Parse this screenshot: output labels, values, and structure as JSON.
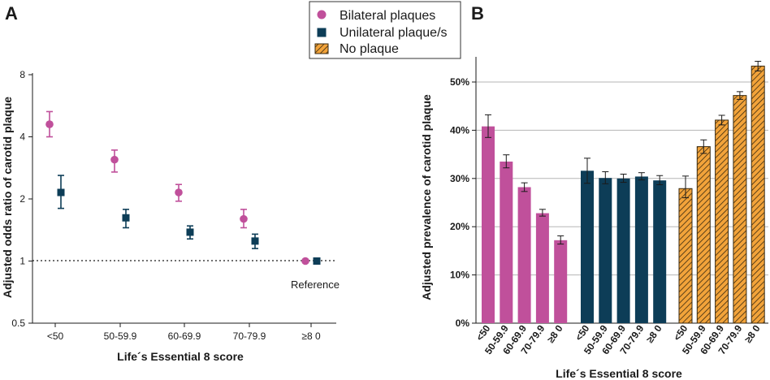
{
  "legend": {
    "items": [
      {
        "label": "Bilateral plaques",
        "color": "#c0509b",
        "marker": "circle"
      },
      {
        "label": "Unilateral plaque/s",
        "color": "#0d3d57",
        "marker": "square"
      },
      {
        "label": "No plaque",
        "color": "#f2a33a",
        "marker": "hatched-square"
      }
    ]
  },
  "chart_data": [
    {
      "panel": "A",
      "type": "scatter",
      "ylabel": "Adjusted odds ratio of carotid plaque",
      "xlabel": "Life´s Essential 8 score",
      "y_scale": "log2",
      "ylim": [
        0.5,
        8
      ],
      "yticks": [
        "0.5",
        "1",
        "2",
        "4",
        "8"
      ],
      "categories": [
        "<50",
        "50-59.9",
        "60-69.9",
        "70-79.9",
        "≥8 0"
      ],
      "reference_line": 1,
      "reference_label": "Reference",
      "series": [
        {
          "name": "Bilateral plaques",
          "values": [
            4.6,
            3.1,
            2.15,
            1.6,
            1.0
          ],
          "lower": [
            4.0,
            2.7,
            1.95,
            1.45,
            null
          ],
          "upper": [
            5.3,
            3.45,
            2.35,
            1.78,
            null
          ]
        },
        {
          "name": "Unilateral plaque/s",
          "values": [
            2.15,
            1.62,
            1.38,
            1.25,
            1.0
          ],
          "lower": [
            1.8,
            1.45,
            1.28,
            1.15,
            null
          ],
          "upper": [
            2.6,
            1.78,
            1.48,
            1.35,
            null
          ]
        }
      ]
    },
    {
      "panel": "B",
      "type": "bar",
      "ylabel": "Adjusted prevalence of carotid plaque",
      "xlabel": "Life´s Essential 8 score",
      "ylim": [
        0,
        50
      ],
      "yticks": [
        "0%",
        "10%",
        "20%",
        "30%",
        "40%",
        "50%"
      ],
      "categories": [
        "<50",
        "50-59.9",
        "60-69.9",
        "70-79.9",
        "≥8 0"
      ],
      "series": [
        {
          "name": "Bilateral plaques",
          "values": [
            40.8,
            33.5,
            28.2,
            22.8,
            17.2
          ],
          "lower": [
            38.5,
            32.2,
            27.3,
            22.2,
            16.4
          ],
          "upper": [
            43.2,
            34.9,
            29.1,
            23.6,
            18.1
          ]
        },
        {
          "name": "Unilateral plaque/s",
          "values": [
            31.6,
            30.1,
            30.0,
            30.4,
            29.6
          ],
          "lower": [
            29.0,
            28.9,
            29.2,
            29.7,
            28.7
          ],
          "upper": [
            34.2,
            31.4,
            30.9,
            31.2,
            30.6
          ]
        },
        {
          "name": "No plaque",
          "values": [
            27.9,
            36.6,
            42.1,
            47.2,
            53.3
          ],
          "lower": [
            26.0,
            35.2,
            41.1,
            46.4,
            52.3
          ],
          "upper": [
            30.5,
            38.0,
            43.1,
            48.0,
            54.3
          ]
        }
      ]
    }
  ]
}
